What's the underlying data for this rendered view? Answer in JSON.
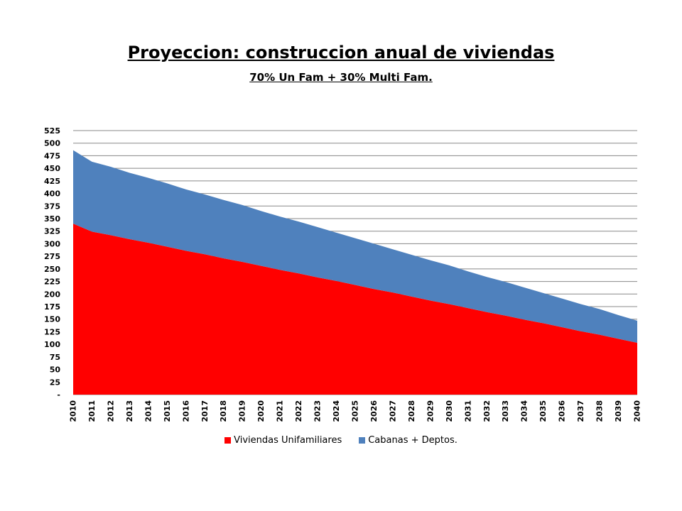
{
  "chart_data": {
    "type": "area",
    "stacked": true,
    "title": "Proyeccion: construccion anual de viviendas",
    "subtitle": "70% Un Fam + 30% Multi Fam.",
    "x": [
      "2010",
      "2011",
      "2012",
      "2013",
      "2014",
      "2015",
      "2016",
      "2017",
      "2018",
      "2019",
      "2020",
      "2021",
      "2022",
      "2023",
      "2024",
      "2025",
      "2026",
      "2027",
      "2028",
      "2029",
      "2030",
      "2031",
      "2032",
      "2033",
      "2034",
      "2035",
      "2036",
      "2037",
      "2038",
      "2039",
      "2040"
    ],
    "ylim": [
      0,
      525
    ],
    "yticks": [
      {
        "value": 0,
        "label": "-"
      },
      {
        "value": 25,
        "label": "25"
      },
      {
        "value": 50,
        "label": "50"
      },
      {
        "value": 75,
        "label": "75"
      },
      {
        "value": 100,
        "label": "100"
      },
      {
        "value": 125,
        "label": "125"
      },
      {
        "value": 150,
        "label": "150"
      },
      {
        "value": 175,
        "label": "175"
      },
      {
        "value": 200,
        "label": "200"
      },
      {
        "value": 225,
        "label": "225"
      },
      {
        "value": 250,
        "label": "250"
      },
      {
        "value": 275,
        "label": "275"
      },
      {
        "value": 300,
        "label": "300"
      },
      {
        "value": 325,
        "label": "325"
      },
      {
        "value": 350,
        "label": "350"
      },
      {
        "value": 375,
        "label": "375"
      },
      {
        "value": 400,
        "label": "400"
      },
      {
        "value": 425,
        "label": "425"
      },
      {
        "value": 450,
        "label": "450"
      },
      {
        "value": 475,
        "label": "475"
      },
      {
        "value": 500,
        "label": "500"
      },
      {
        "value": 525,
        "label": "525"
      }
    ],
    "grid": true,
    "legend_position": "bottom",
    "series": [
      {
        "name": "Viviendas Unifamiliares",
        "color": "#ff0000",
        "values": [
          340,
          324,
          317,
          309,
          302,
          294,
          286,
          279,
          271,
          264,
          256,
          248,
          241,
          233,
          226,
          218,
          210,
          203,
          195,
          187,
          180,
          172,
          164,
          157,
          149,
          142,
          134,
          126,
          119,
          111,
          103
        ]
      },
      {
        "name": "Cabanas + Deptos.",
        "color": "#4f81bd",
        "values": [
          146,
          139,
          136,
          132,
          129,
          126,
          122,
          119,
          116,
          113,
          109,
          106,
          103,
          100,
          96,
          93,
          90,
          86,
          83,
          80,
          77,
          73,
          70,
          67,
          64,
          60,
          57,
          54,
          51,
          47,
          44
        ]
      }
    ]
  }
}
